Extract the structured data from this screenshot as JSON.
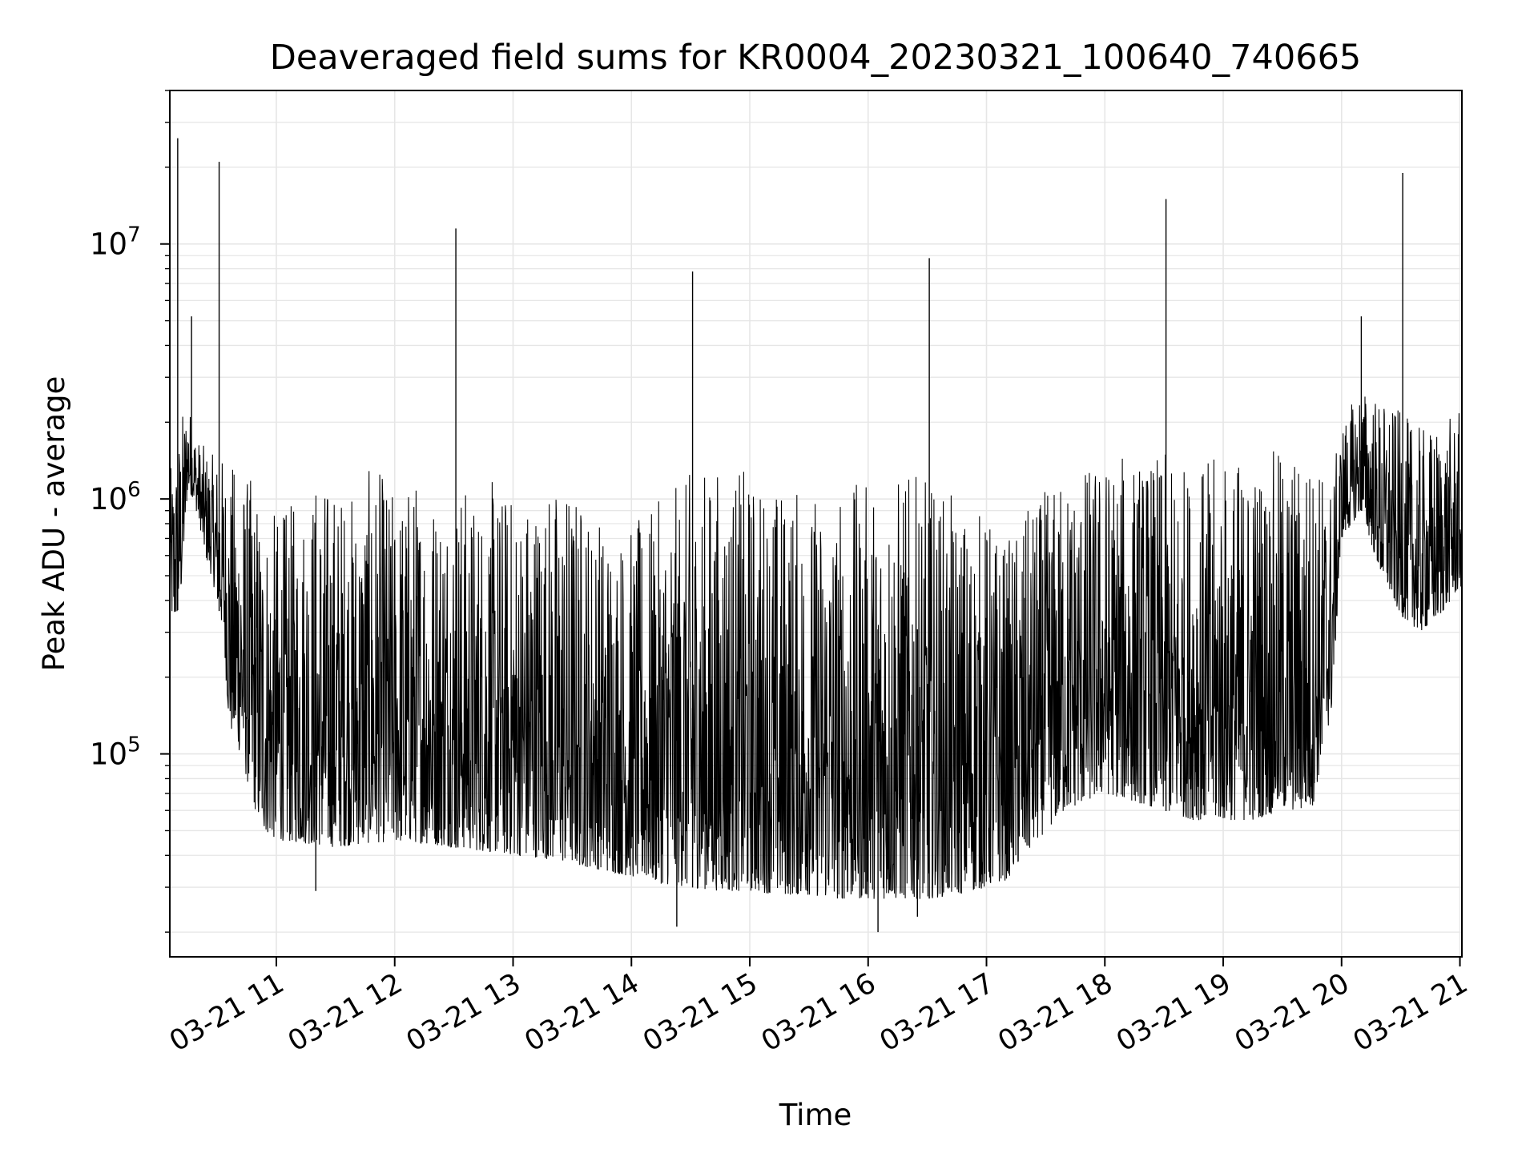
{
  "chart_data": {
    "type": "line",
    "title": "Deaveraged field sums for KR0004_20230321_100640_740665",
    "xlabel": "Time",
    "ylabel": "Peak ADU - average",
    "y_scale": "log",
    "ylim": [
      16000,
      40000000
    ],
    "xlim": [
      "2023-03-21 10:06",
      "2023-03-21 21:01"
    ],
    "grid": true,
    "line_color": "#000000",
    "x_ticks": [
      {
        "value": "2023-03-21 11:00",
        "label": "03-21 11"
      },
      {
        "value": "2023-03-21 12:00",
        "label": "03-21 12"
      },
      {
        "value": "2023-03-21 13:00",
        "label": "03-21 13"
      },
      {
        "value": "2023-03-21 14:00",
        "label": "03-21 14"
      },
      {
        "value": "2023-03-21 15:00",
        "label": "03-21 15"
      },
      {
        "value": "2023-03-21 16:00",
        "label": "03-21 16"
      },
      {
        "value": "2023-03-21 17:00",
        "label": "03-21 17"
      },
      {
        "value": "2023-03-21 18:00",
        "label": "03-21 18"
      },
      {
        "value": "2023-03-21 19:00",
        "label": "03-21 19"
      },
      {
        "value": "2023-03-21 20:00",
        "label": "03-21 20"
      },
      {
        "value": "2023-03-21 21:00",
        "label": "03-21 21"
      }
    ],
    "y_ticks": [
      {
        "value": 100000,
        "base": "10",
        "exp": "5"
      },
      {
        "value": 1000000,
        "base": "10",
        "exp": "6"
      },
      {
        "value": 10000000,
        "base": "10",
        "exp": "7"
      }
    ],
    "series": [
      {
        "x": [
          "2023-03-21 10:06",
          "2023-03-21 10:09",
          "2023-03-21 10:12",
          "2023-03-21 10:15",
          "2023-03-21 10:18",
          "2023-03-21 10:21",
          "2023-03-21 10:24",
          "2023-03-21 10:27",
          "2023-03-21 10:30",
          "2023-03-21 10:33",
          "2023-03-21 10:36",
          "2023-03-21 10:39",
          "2023-03-21 10:42",
          "2023-03-21 10:45",
          "2023-03-21 10:48",
          "2023-03-21 10:51",
          "2023-03-21 10:54",
          "2023-03-21 10:57",
          "2023-03-21 11:00",
          "2023-03-21 11:10",
          "2023-03-21 11:20",
          "2023-03-21 11:30",
          "2023-03-21 11:40",
          "2023-03-21 11:50",
          "2023-03-21 12:00",
          "2023-03-21 12:10",
          "2023-03-21 12:20",
          "2023-03-21 12:30",
          "2023-03-21 12:40",
          "2023-03-21 12:50",
          "2023-03-21 13:00",
          "2023-03-21 13:15",
          "2023-03-21 13:30",
          "2023-03-21 13:45",
          "2023-03-21 14:00",
          "2023-03-21 14:15",
          "2023-03-21 14:30",
          "2023-03-21 14:45",
          "2023-03-21 15:00",
          "2023-03-21 15:15",
          "2023-03-21 15:30",
          "2023-03-21 15:45",
          "2023-03-21 16:00",
          "2023-03-21 16:15",
          "2023-03-21 16:30",
          "2023-03-21 16:45",
          "2023-03-21 17:00",
          "2023-03-21 17:10",
          "2023-03-21 17:20",
          "2023-03-21 17:30",
          "2023-03-21 17:40",
          "2023-03-21 17:50",
          "2023-03-21 18:00",
          "2023-03-21 18:15",
          "2023-03-21 18:30",
          "2023-03-21 18:45",
          "2023-03-21 19:00",
          "2023-03-21 19:15",
          "2023-03-21 19:30",
          "2023-03-21 19:45",
          "2023-03-21 19:55",
          "2023-03-21 20:00",
          "2023-03-21 20:10",
          "2023-03-21 20:20",
          "2023-03-21 20:30",
          "2023-03-21 20:40",
          "2023-03-21 20:50",
          "2023-03-21 21:00"
        ],
        "low": [
          350000,
          330000,
          450000,
          1100000,
          1000000,
          800000,
          600000,
          500000,
          400000,
          300000,
          130000,
          110000,
          100000,
          80000,
          65000,
          55000,
          50000,
          48000,
          46000,
          45000,
          44000,
          43000,
          44000,
          45000,
          45000,
          45000,
          44000,
          43000,
          42000,
          41000,
          40000,
          39000,
          37000,
          35000,
          33000,
          31000,
          30000,
          29000,
          29000,
          28000,
          28000,
          27000,
          27000,
          27000,
          27000,
          28000,
          30000,
          32000,
          40000,
          50000,
          60000,
          65000,
          70000,
          65000,
          60000,
          55000,
          55000,
          55000,
          60000,
          60000,
          150000,
          700000,
          900000,
          500000,
          350000,
          300000,
          350000,
          450000
        ],
        "high": [
          1300000,
          1500000,
          2200000,
          2500000,
          2000000,
          1700000,
          1600000,
          1500000,
          1500000,
          1500000,
          1400000,
          1400000,
          1300000,
          1300000,
          1200000,
          1100000,
          1000000,
          900000,
          900000,
          1000000,
          1300000,
          1200000,
          1100000,
          1400000,
          1100000,
          1300000,
          1200000,
          1300000,
          1100000,
          1200000,
          1100000,
          1200000,
          1200000,
          900000,
          800000,
          1000000,
          1300000,
          1400000,
          1300000,
          1200000,
          1100000,
          1100000,
          1200000,
          1300000,
          1200000,
          1000000,
          900000,
          700000,
          900000,
          1100000,
          1300000,
          1400000,
          1500000,
          1500000,
          1500000,
          1400000,
          1500000,
          1500000,
          1600000,
          1600000,
          1200000,
          2000000,
          2800000,
          2500000,
          2200000,
          1900000,
          2000000,
          2200000
        ],
        "spikes": [
          {
            "x": "2023-03-21 10:10",
            "y": 26000000
          },
          {
            "x": "2023-03-21 10:17",
            "y": 5200000
          },
          {
            "x": "2023-03-21 10:31",
            "y": 21000000
          },
          {
            "x": "2023-03-21 12:31",
            "y": 11500000
          },
          {
            "x": "2023-03-21 14:31",
            "y": 7800000
          },
          {
            "x": "2023-03-21 16:31",
            "y": 8800000
          },
          {
            "x": "2023-03-21 18:31",
            "y": 15000000
          },
          {
            "x": "2023-03-21 20:10",
            "y": 5200000
          },
          {
            "x": "2023-03-21 20:31",
            "y": 19000000
          }
        ],
        "dips": [
          {
            "x": "2023-03-21 11:20",
            "y": 29000.0
          },
          {
            "x": "2023-03-21 14:23",
            "y": 21000
          },
          {
            "x": "2023-03-21 16:05",
            "y": 20000
          },
          {
            "x": "2023-03-21 16:25",
            "y": 23000
          }
        ]
      }
    ]
  }
}
